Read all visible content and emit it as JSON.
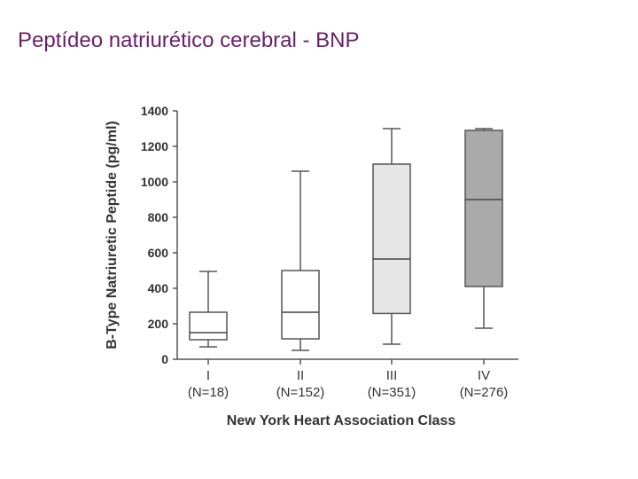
{
  "slide": {
    "title": "Peptídeo natriurético cerebral - BNP"
  },
  "chart_data": {
    "type": "box",
    "title": "Peptídeo natriurético cerebral - BNP",
    "xlabel": "New York Heart Association Class",
    "ylabel": "B-Type Natriuretic Peptide (pg/ml)",
    "ylim": [
      0,
      1400
    ],
    "yticks": [
      0,
      200,
      400,
      600,
      800,
      1000,
      1200,
      1400
    ],
    "categories": [
      "I",
      "II",
      "III",
      "IV"
    ],
    "n_labels": [
      "(N=18)",
      "(N=152)",
      "(N=351)",
      "(N=276)"
    ],
    "boxes": [
      {
        "category": "I",
        "min": 70,
        "q1": 110,
        "median": 150,
        "q3": 265,
        "max": 495,
        "color": "#ffffff"
      },
      {
        "category": "II",
        "min": 50,
        "q1": 115,
        "median": 265,
        "q3": 500,
        "max": 1060,
        "color": "#ffffff"
      },
      {
        "category": "III",
        "min": 85,
        "q1": 258,
        "median": 565,
        "q3": 1100,
        "max": 1300,
        "color": "#e6e6e6"
      },
      {
        "category": "IV",
        "min": 175,
        "q1": 410,
        "median": 900,
        "q3": 1290,
        "max": 1300,
        "color": "#aaaaaa"
      }
    ]
  }
}
